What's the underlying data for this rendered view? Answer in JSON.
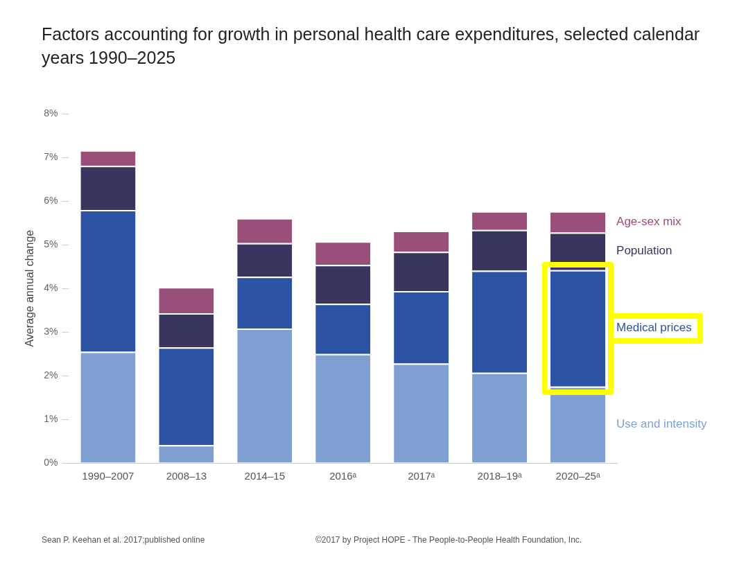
{
  "chart_data": {
    "type": "bar",
    "title": "Factors accounting for growth in personal health care expenditures, selected calendar years 1990–2025",
    "ylabel": "Average annual change",
    "categories": [
      "1990–2007",
      "2008–13",
      "2014–15",
      "2016ᵃ",
      "2017ᵃ",
      "2018–19ᵃ",
      "2020–25ᵃ"
    ],
    "stacked": true,
    "series": [
      {
        "name": "Use and intensity",
        "color": "#7f9fd3",
        "values": [
          2.55,
          0.41,
          3.08,
          2.5,
          2.28,
          2.07,
          1.75
        ]
      },
      {
        "name": "Medical prices",
        "color": "#2b52a3",
        "values": [
          3.25,
          2.24,
          1.19,
          1.15,
          1.66,
          2.34,
          2.67
        ]
      },
      {
        "name": "Population",
        "color": "#38355e",
        "values": [
          1.01,
          0.78,
          0.77,
          0.89,
          0.9,
          0.93,
          0.86
        ]
      },
      {
        "name": "Age-sex mix",
        "color": "#9a4f7a",
        "values": [
          0.36,
          0.6,
          0.57,
          0.54,
          0.48,
          0.43,
          0.49
        ]
      }
    ],
    "ylim": [
      0,
      8
    ],
    "yticks": [
      {
        "value": 0,
        "label": "0%"
      },
      {
        "value": 1,
        "label": "1%"
      },
      {
        "value": 2,
        "label": "2%"
      },
      {
        "value": 3,
        "label": "3%"
      },
      {
        "value": 4,
        "label": "4%"
      },
      {
        "value": 5,
        "label": "5%"
      },
      {
        "value": 6,
        "label": "6%"
      },
      {
        "value": 7,
        "label": "7%"
      },
      {
        "value": 8,
        "label": "8%"
      }
    ],
    "annotations": [
      "Sean P. Keehan et al. 2017;published online",
      "©2017 by Project HOPE - The People-to-People Health Foundation, Inc."
    ]
  }
}
